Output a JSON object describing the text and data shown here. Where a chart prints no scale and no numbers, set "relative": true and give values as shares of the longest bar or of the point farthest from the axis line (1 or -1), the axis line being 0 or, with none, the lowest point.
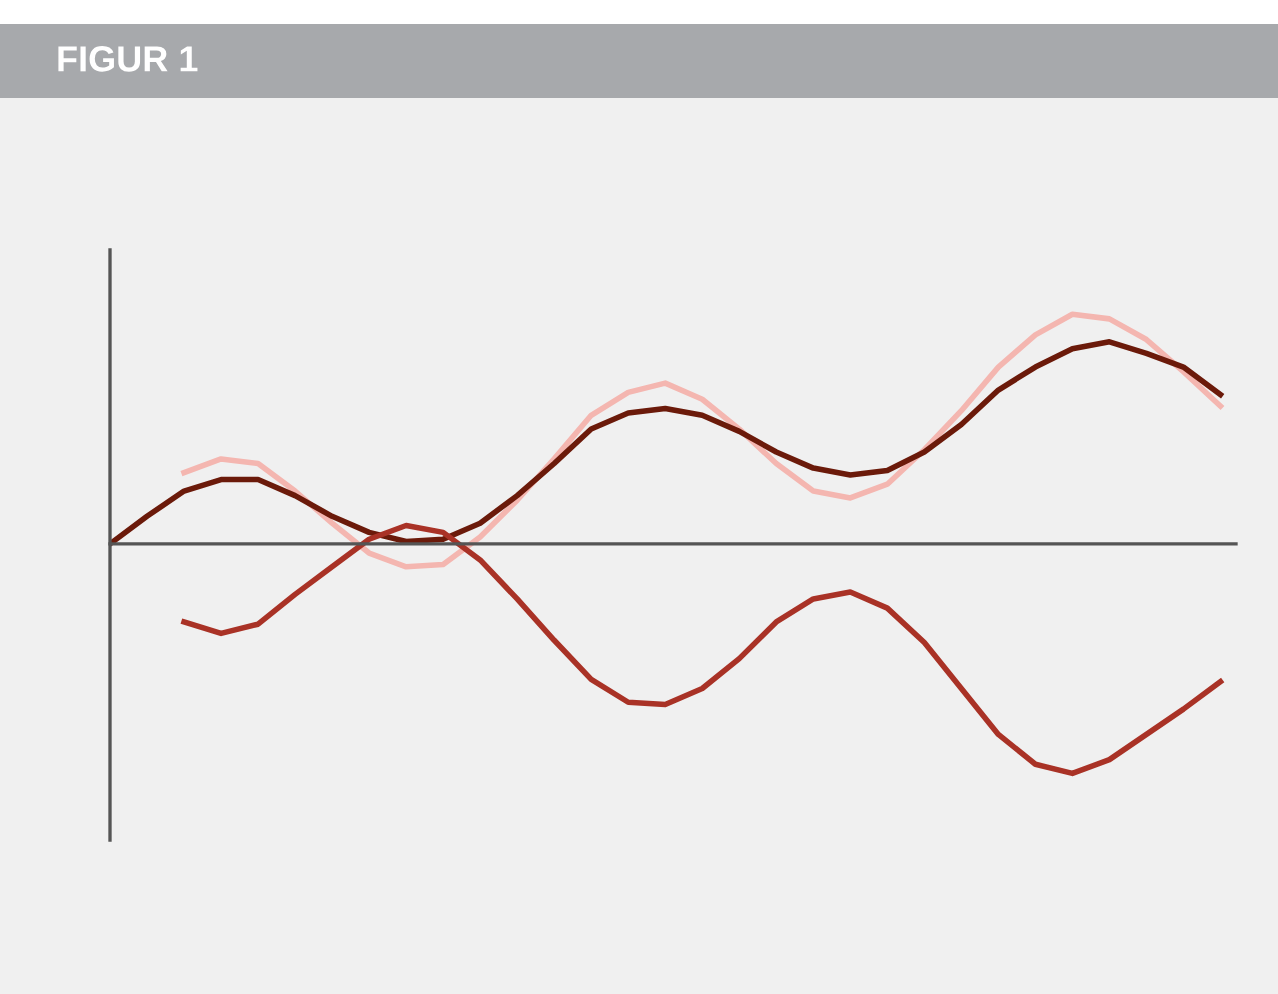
{
  "chart_data": {
    "type": "line",
    "title": "FIGUR 1",
    "relative": true,
    "marker": "none",
    "line_style": "solid",
    "categories": [
      null,
      null,
      null,
      null,
      null,
      null,
      null,
      null,
      null,
      null,
      null,
      null,
      null,
      null,
      null,
      null,
      null,
      null,
      null,
      null,
      null,
      null,
      null,
      null,
      null,
      null,
      null,
      null,
      null,
      null,
      null
    ],
    "series": [
      {
        "color": "#f4b6b0",
        "values": [
          null,
          null,
          0.31,
          0.37,
          0.35,
          0.23,
          0.09,
          -0.04,
          -0.1,
          -0.09,
          0.03,
          0.19,
          0.37,
          0.56,
          0.66,
          0.7,
          0.63,
          0.5,
          0.35,
          0.23,
          0.2,
          0.26,
          0.41,
          0.58,
          0.77,
          0.91,
          1.0,
          0.98,
          0.89,
          0.75,
          0.6
        ]
      },
      {
        "color": "#6b1a0a",
        "values": [
          0,
          0.12,
          0.23,
          0.28,
          0.28,
          0.21,
          0.12,
          0.05,
          0.01,
          0.02,
          0.09,
          0.21,
          0.35,
          0.5,
          0.57,
          0.59,
          0.56,
          0.49,
          0.4,
          0.33,
          0.3,
          0.32,
          0.4,
          0.52,
          0.67,
          0.77,
          0.85,
          0.88,
          0.83,
          0.77,
          0.65
        ]
      },
      {
        "color": "#a93226",
        "values": [
          null,
          null,
          -0.34,
          -0.39,
          -0.35,
          -0.22,
          -0.1,
          0.02,
          0.08,
          0.05,
          -0.07,
          -0.24,
          -0.42,
          -0.59,
          -0.69,
          -0.7,
          -0.63,
          -0.5,
          -0.34,
          -0.24,
          -0.21,
          -0.28,
          -0.43,
          -0.63,
          -0.83,
          -0.96,
          -1.0,
          -0.94,
          -0.83,
          -0.72,
          -0.6
        ]
      }
    ]
  }
}
